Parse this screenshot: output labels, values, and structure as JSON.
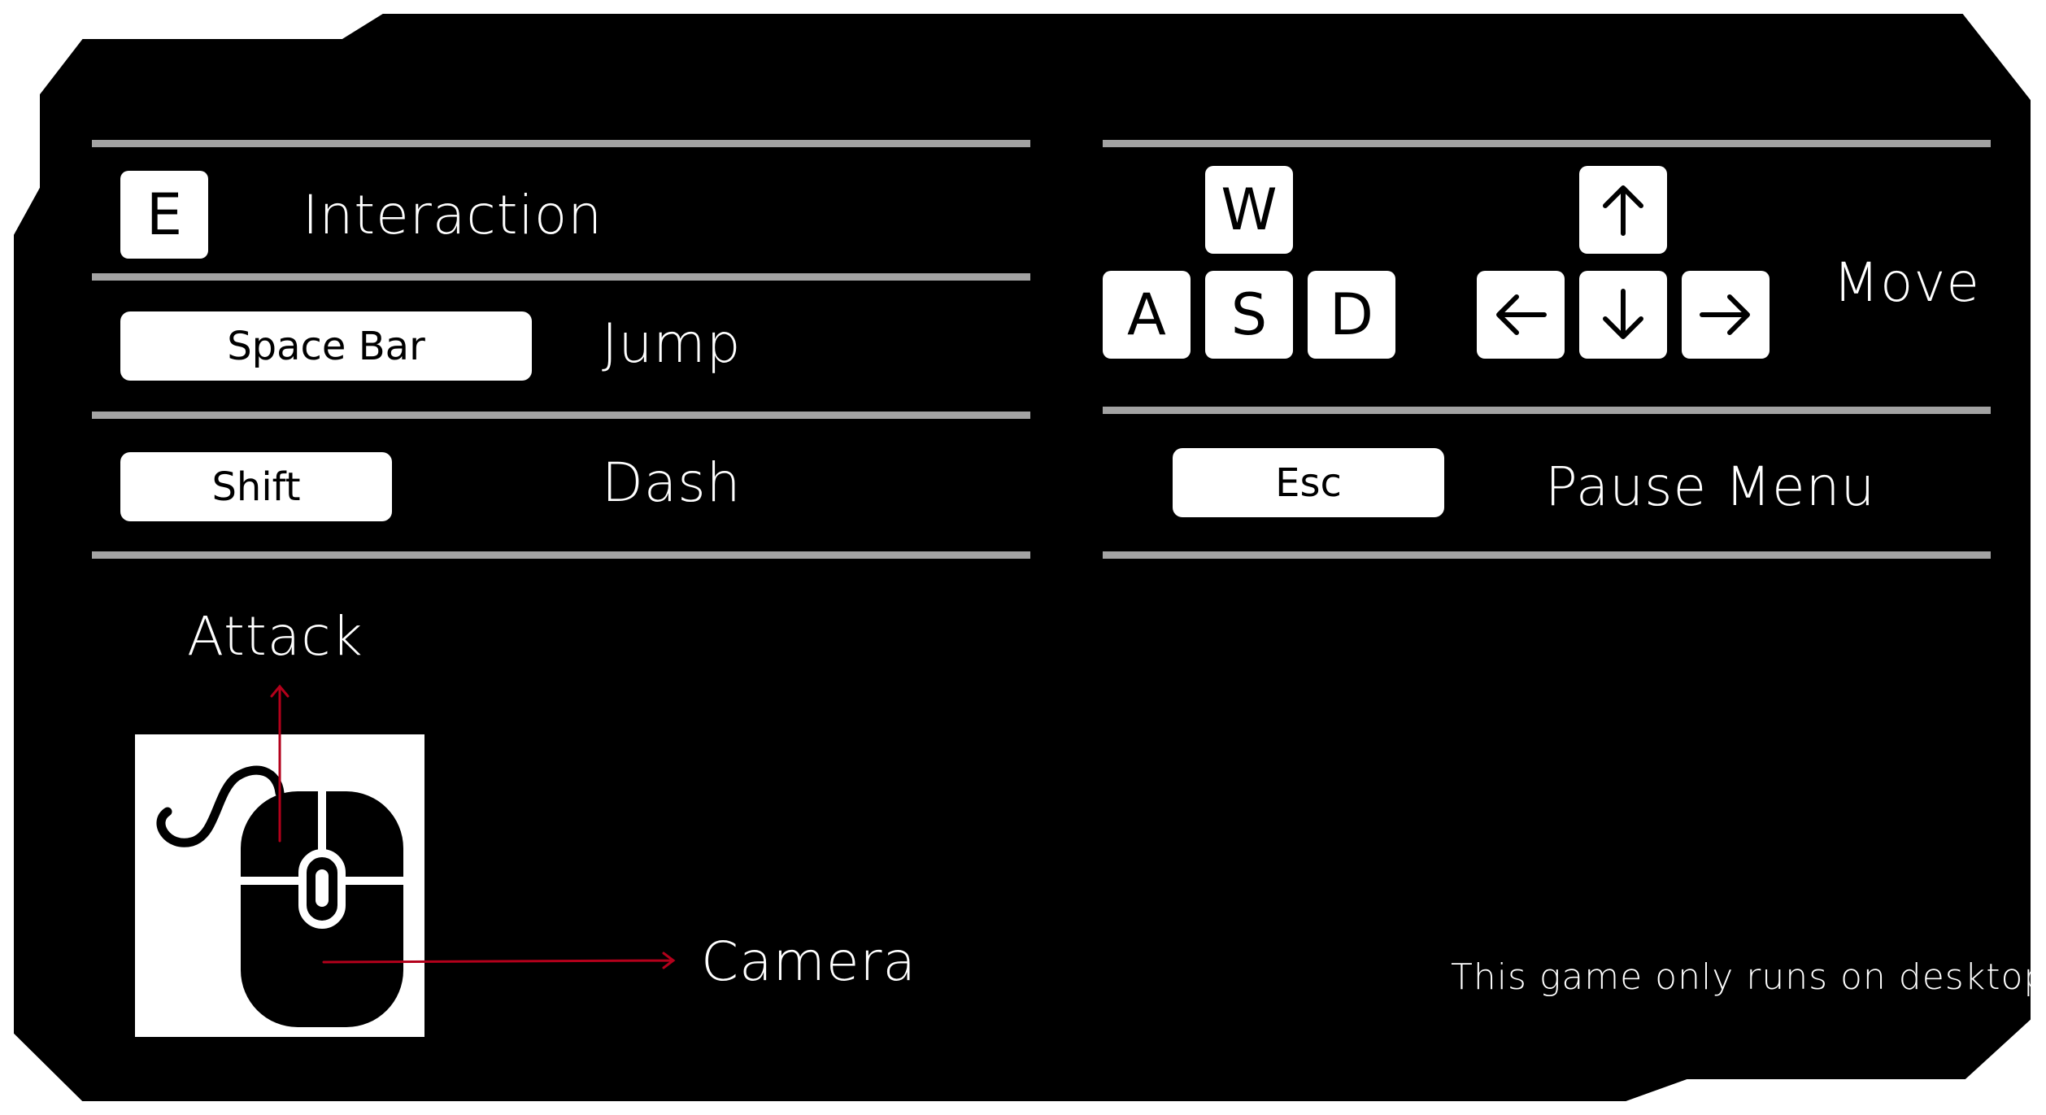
{
  "panel": {
    "background": "#000000",
    "border": "#ffffff",
    "rule_color": "#a3a3a3",
    "accent": "#b3001b"
  },
  "left_controls": [
    {
      "key": "E",
      "action": "Interaction"
    },
    {
      "key": "Space Bar",
      "action": "Jump"
    },
    {
      "key": "Shift",
      "action": "Dash"
    }
  ],
  "move": {
    "keys": [
      "W",
      "A",
      "S",
      "D"
    ],
    "arrow_keys": [
      "arrow-up-icon",
      "arrow-left-icon",
      "arrow-down-icon",
      "arrow-right-icon"
    ],
    "action": "Move"
  },
  "pause": {
    "key": "Esc",
    "action": "Pause Menu"
  },
  "mouse": {
    "icon": "mouse-icon",
    "attack_label": "Attack",
    "camera_label": "Camera"
  },
  "footer_note": "This game only runs on desktop"
}
